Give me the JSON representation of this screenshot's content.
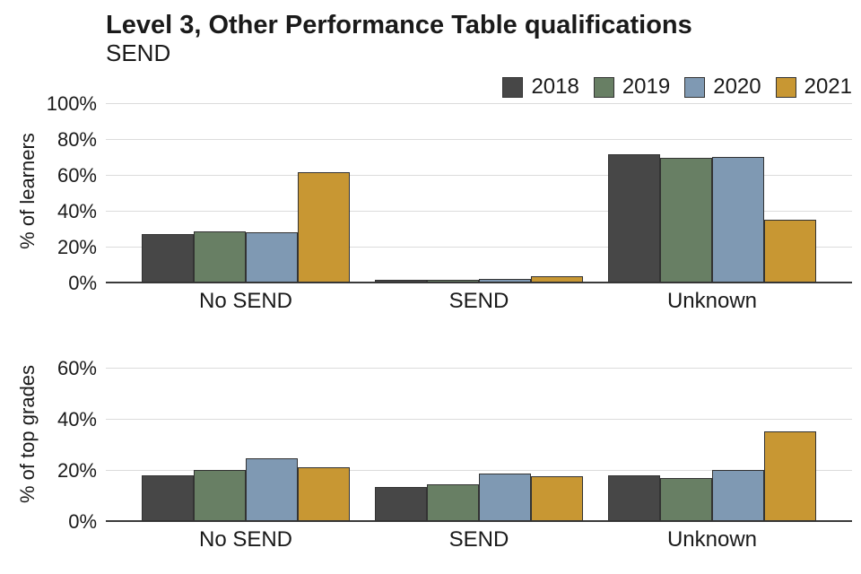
{
  "title": "Level 3, Other Performance Table qualifications",
  "subtitle": "SEND",
  "colors": {
    "series_2018": "#474747",
    "series_2019": "#687f64",
    "series_2020": "#7f99b3",
    "series_2021": "#c89733",
    "bar_border": "#333333",
    "gridline": "#dcdcdc",
    "axis_line": "#3a3a3a",
    "text": "#1a1a1a",
    "background": "#ffffff"
  },
  "legend": {
    "position": "top-right",
    "entries": [
      {
        "label": "2018",
        "color": "#474747"
      },
      {
        "label": "2019",
        "color": "#687f64"
      },
      {
        "label": "2020",
        "color": "#7f99b3"
      },
      {
        "label": "2021",
        "color": "#c89733"
      }
    ]
  },
  "chart_data": [
    {
      "type": "bar",
      "title": "Level 3, Other Performance Table qualifications",
      "subtitle": "SEND",
      "ylabel": "% of learners",
      "xlabel": "",
      "categories": [
        "No SEND",
        "SEND",
        "Unknown"
      ],
      "series": [
        {
          "name": "2018",
          "color": "#474747",
          "values": [
            27,
            1.5,
            71.5
          ]
        },
        {
          "name": "2019",
          "color": "#687f64",
          "values": [
            28.5,
            1.5,
            69.5
          ]
        },
        {
          "name": "2020",
          "color": "#7f99b3",
          "values": [
            28,
            2,
            70
          ]
        },
        {
          "name": "2021",
          "color": "#c89733",
          "values": [
            61.5,
            3.5,
            35
          ]
        }
      ],
      "yticks": [
        0,
        20,
        40,
        60,
        80,
        100
      ],
      "ytick_suffix": "%",
      "ylim": [
        0,
        102.5
      ],
      "grid": "horizontal",
      "legend_position": "top-right"
    },
    {
      "type": "bar",
      "title": "",
      "ylabel": "% of top grades",
      "xlabel": "",
      "categories": [
        "No SEND",
        "SEND",
        "Unknown"
      ],
      "series": [
        {
          "name": "2018",
          "color": "#474747",
          "values": [
            18,
            13.5,
            18
          ]
        },
        {
          "name": "2019",
          "color": "#687f64",
          "values": [
            20,
            14.5,
            17
          ]
        },
        {
          "name": "2020",
          "color": "#7f99b3",
          "values": [
            24.5,
            18.5,
            20
          ]
        },
        {
          "name": "2021",
          "color": "#c89733",
          "values": [
            21,
            17.5,
            35
          ]
        }
      ],
      "yticks": [
        0,
        20,
        40,
        60
      ],
      "ytick_suffix": "%",
      "ylim": [
        0,
        68.4
      ],
      "grid": "horizontal",
      "legend_position": "none"
    }
  ]
}
